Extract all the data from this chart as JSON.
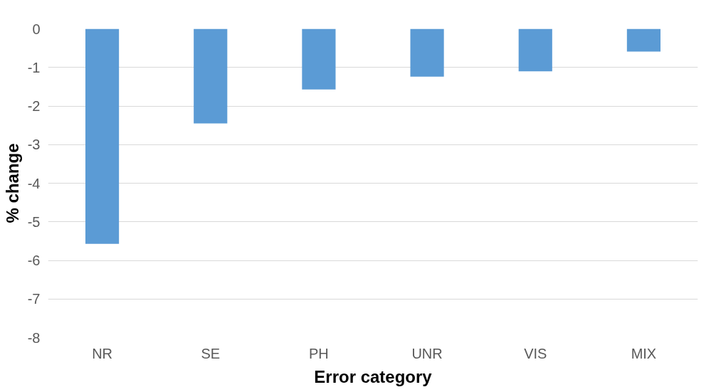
{
  "chart_data": {
    "type": "bar",
    "xlabel": "Error category",
    "ylabel": "% change",
    "categories": [
      "NR",
      "SE",
      "PH",
      "UNR",
      "VIS",
      "MIX"
    ],
    "values": [
      -5.57,
      -2.45,
      -1.57,
      -1.24,
      -1.1,
      -0.59
    ],
    "color": "#5b9bd5",
    "ylim": [
      -8,
      0
    ],
    "yticks": [
      0,
      -1,
      -2,
      -3,
      -4,
      -5,
      -6,
      -7,
      -8
    ],
    "grid": "y"
  }
}
